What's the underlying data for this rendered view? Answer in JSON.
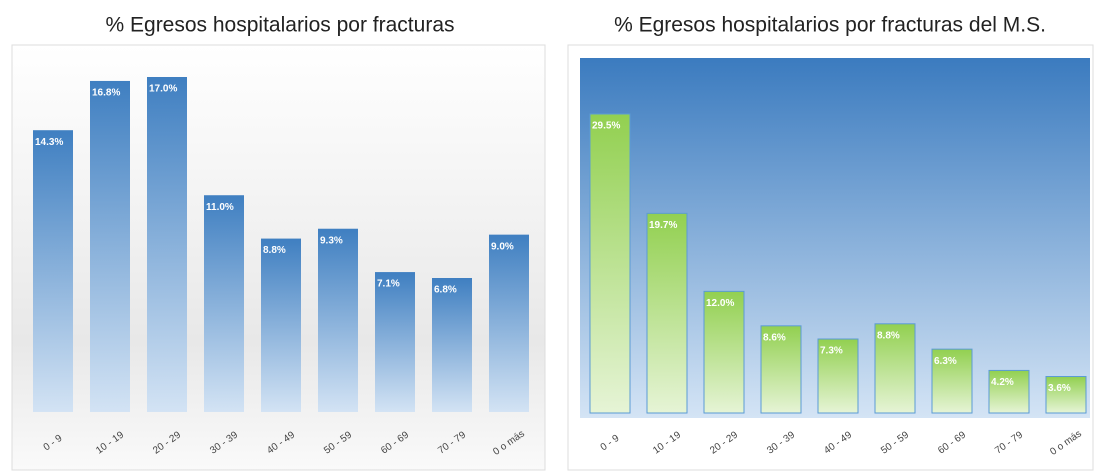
{
  "chart_data": [
    {
      "type": "bar",
      "title": "% Egresos hospitalarios por fracturas",
      "categories": [
        "0 - 9",
        "10 - 19",
        "20 - 29",
        "30 - 39",
        "40 - 49",
        "50 - 59",
        "60 - 69",
        "70 - 79",
        "0 o más"
      ],
      "values": [
        14.3,
        16.8,
        17.0,
        11.0,
        8.8,
        9.3,
        7.1,
        6.8,
        9.0
      ],
      "value_labels": [
        "14.3%",
        "16.8%",
        "17.0%",
        "11.0%",
        "8.8%",
        "9.3%",
        "7.1%",
        "6.8%",
        "9.0%"
      ],
      "color": "#3f7fc1"
    },
    {
      "type": "bar",
      "title": "% Egresos hospitalarios por fracturas del M.S.",
      "categories": [
        "0 - 9",
        "10 - 19",
        "20 - 29",
        "30 - 39",
        "40 - 49",
        "50 - 59",
        "60 - 69",
        "70 - 79",
        "0 o más"
      ],
      "values": [
        29.5,
        19.7,
        12.0,
        8.6,
        7.3,
        8.8,
        6.3,
        4.2,
        3.6
      ],
      "value_labels": [
        "29.5%",
        "19.7%",
        "12.0%",
        "8.6%",
        "7.3%",
        "8.8%",
        "6.3%",
        "4.2%",
        "3.6%"
      ],
      "color": "#92d050"
    }
  ]
}
